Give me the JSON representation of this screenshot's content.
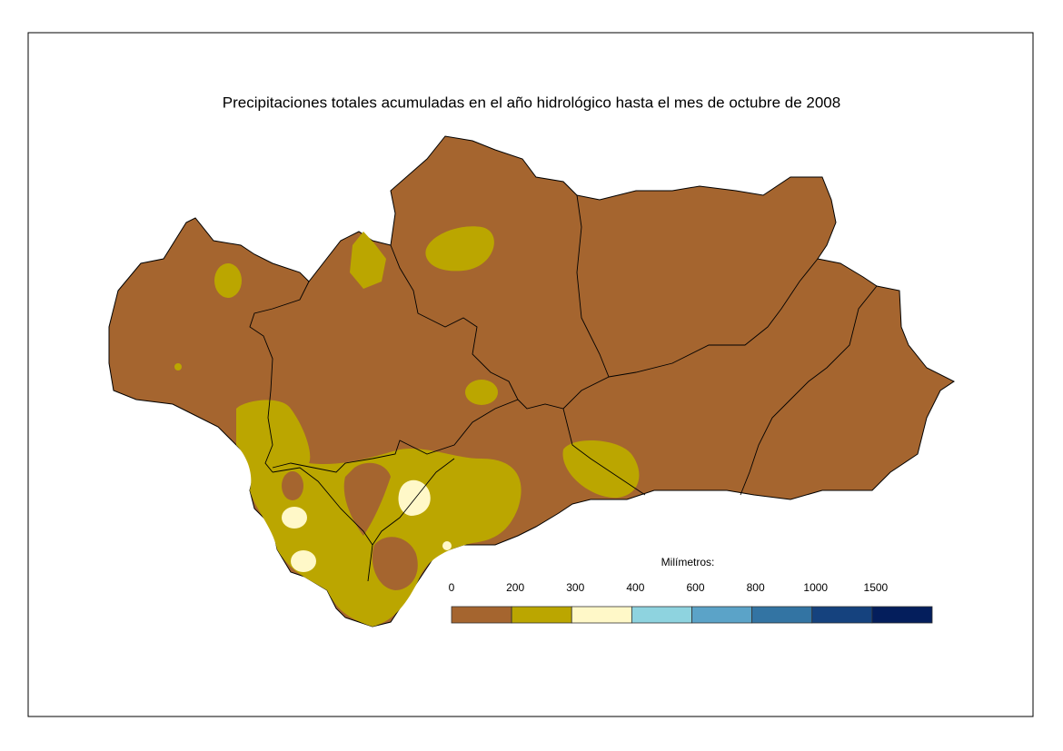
{
  "title": "Precipitaciones totales acumuladas en el año hidrológico hasta el mes de octubre de 2008",
  "legend": {
    "title": "Milímetros:",
    "breaks": [
      0,
      200,
      300,
      400,
      600,
      800,
      1000,
      1500
    ],
    "colors": [
      "#a5652f",
      "#bba600",
      "#fff8c8",
      "#8ed3df",
      "#5ba3c8",
      "#3374a3",
      "#15427e",
      "#041e5c"
    ]
  }
}
